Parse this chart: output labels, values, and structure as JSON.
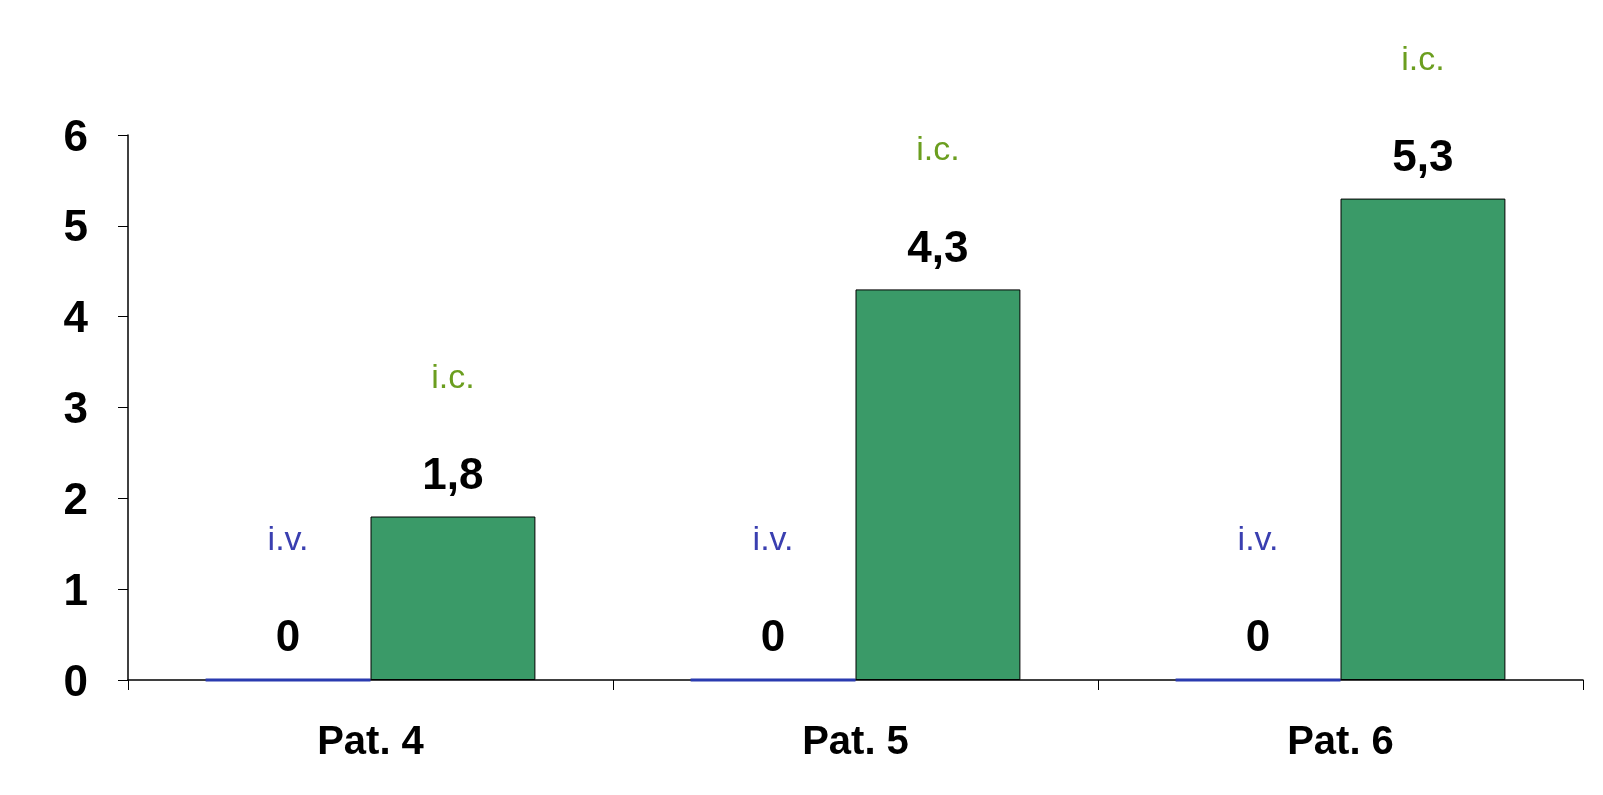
{
  "chart_data": {
    "type": "bar",
    "categories": [
      "Pat. 4",
      "Pat. 5",
      "Pat. 6"
    ],
    "series": [
      {
        "name": "i.v.",
        "color": "#2a3bb0",
        "values": [
          0,
          0,
          0
        ],
        "value_labels": [
          "0",
          "0",
          "0"
        ]
      },
      {
        "name": "i.c.",
        "color": "#3a9a68",
        "values": [
          1.8,
          4.3,
          5.3
        ],
        "value_labels": [
          "1,8",
          "4,3",
          "5,3"
        ]
      }
    ],
    "ylim": [
      0,
      6
    ],
    "yticks": [
      0,
      1,
      2,
      3,
      4,
      5,
      6
    ],
    "grid": false,
    "legend": false
  }
}
